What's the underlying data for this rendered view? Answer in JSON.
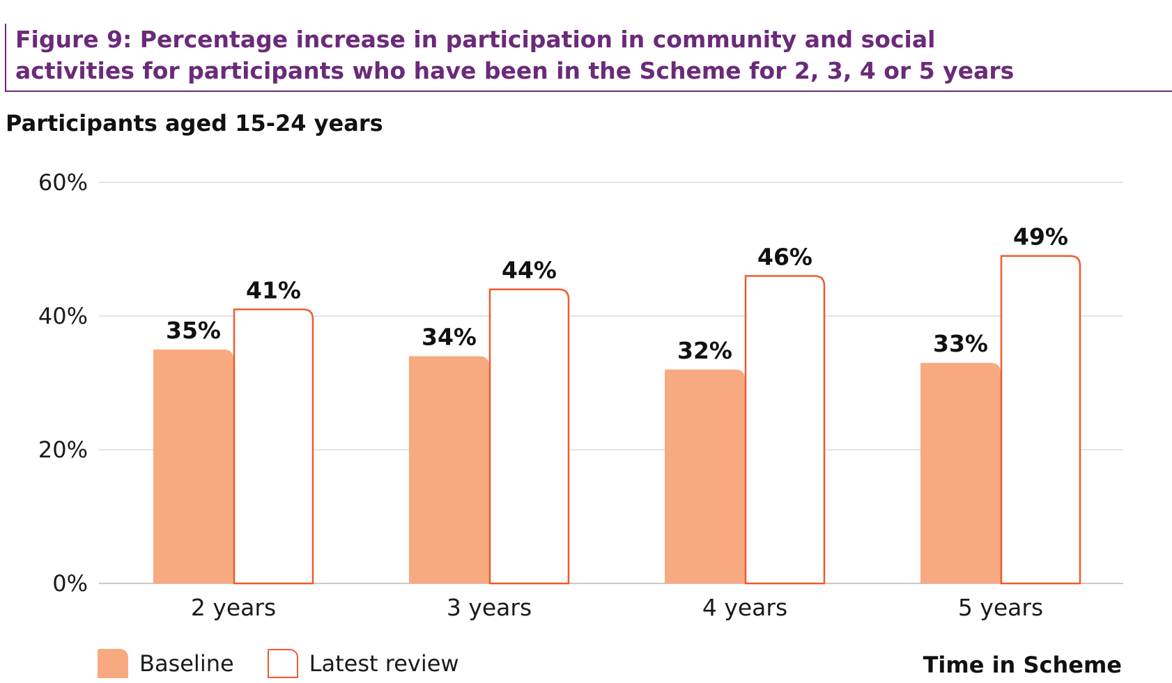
{
  "figure_title": "Figure 9: Percentage increase in participation in community and social activities for participants who have been in the Scheme for 2, 3, 4 or 5 years",
  "chart_data": {
    "type": "bar",
    "title": "Participants aged 15-24 years",
    "xlabel": "Time in Scheme",
    "ylabel": "",
    "categories": [
      "2 years",
      "3 years",
      "4 years",
      "5 years"
    ],
    "series": [
      {
        "name": "Baseline",
        "values": [
          35,
          34,
          32,
          33
        ],
        "labels": [
          "35%",
          "34%",
          "32%",
          "33%"
        ],
        "color": "#f7aa80"
      },
      {
        "name": "Latest review",
        "values": [
          41,
          44,
          46,
          49
        ],
        "labels": [
          "41%",
          "44%",
          "46%",
          "49%"
        ],
        "color": "#ffffff",
        "stroke": "#ef5a30"
      }
    ],
    "ylim": [
      0,
      60
    ],
    "yticks": [
      0,
      20,
      40,
      60
    ],
    "ytick_labels": [
      "0%",
      "20%",
      "40%",
      "60%"
    ],
    "grid": true,
    "legend_position": "bottom-left"
  }
}
